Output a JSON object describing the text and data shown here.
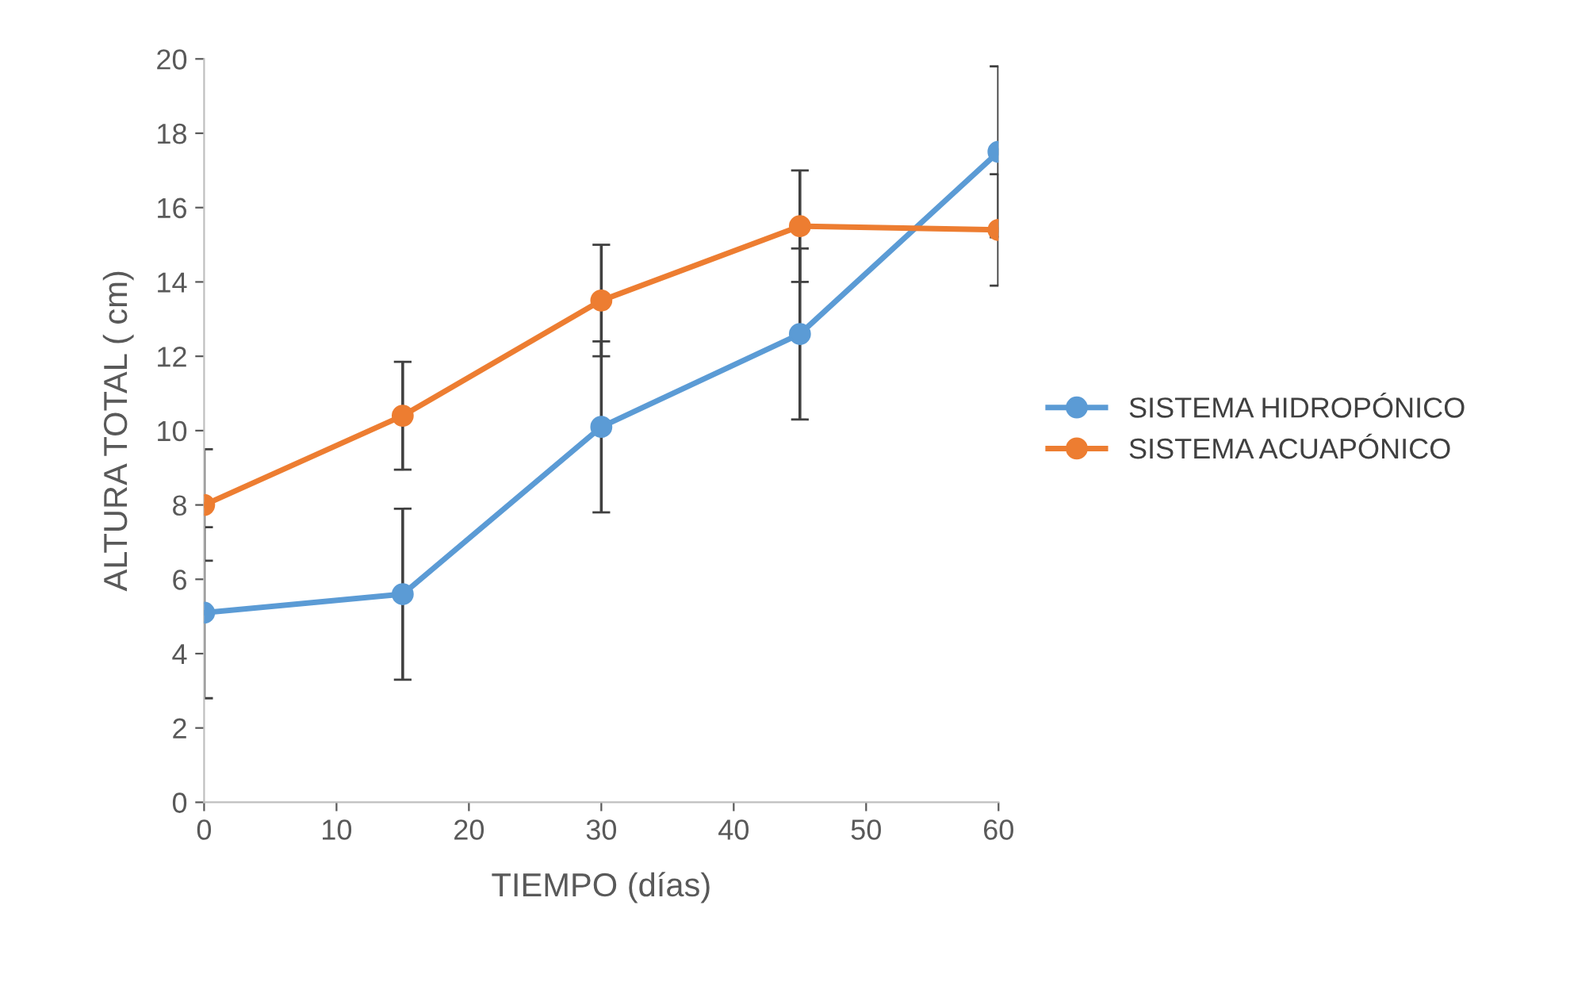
{
  "chart_data": {
    "type": "line",
    "xlabel": "TIEMPO (días)",
    "ylabel": "ALTURA TOTAL ( cm)",
    "x": [
      0,
      15,
      30,
      45,
      60
    ],
    "series": [
      {
        "name": "SISTEMA HIDROPÓNICO",
        "color": "#5b9bd5",
        "values": [
          5.1,
          5.6,
          10.1,
          12.6,
          17.5
        ],
        "errors": [
          2.3,
          2.3,
          2.3,
          2.3,
          2.3
        ]
      },
      {
        "name": "SISTEMA ACUAPÓNICO",
        "color": "#ed7d31",
        "values": [
          8.0,
          10.4,
          13.5,
          15.5,
          15.4
        ],
        "errors": [
          1.5,
          1.45,
          1.5,
          1.5,
          1.5
        ]
      }
    ],
    "xlim": [
      0,
      60
    ],
    "xticks": [
      0,
      10,
      20,
      30,
      40,
      50,
      60
    ],
    "ylim": [
      0,
      20
    ],
    "yticks": [
      0,
      2,
      4,
      6,
      8,
      10,
      12,
      14,
      16,
      18,
      20
    ],
    "marker": "circle",
    "line_style": "solid",
    "grid": false,
    "legend": "right"
  }
}
